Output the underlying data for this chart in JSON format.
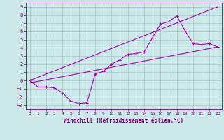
{
  "background_color": "#cce8e8",
  "grid_color": "#aacccc",
  "line_color": "#aa00aa",
  "marker_color": "#aa00aa",
  "xlabel": "Windchill (Refroidissement éolien,°C)",
  "xlabel_color": "#770077",
  "tick_color": "#770077",
  "xlim": [
    -0.5,
    23.5
  ],
  "ylim": [
    -3.5,
    9.5
  ],
  "xticks": [
    0,
    1,
    2,
    3,
    4,
    5,
    6,
    7,
    8,
    9,
    10,
    11,
    12,
    13,
    14,
    15,
    16,
    17,
    18,
    19,
    20,
    21,
    22,
    23
  ],
  "yticks": [
    -3,
    -2,
    -1,
    0,
    1,
    2,
    3,
    4,
    5,
    6,
    7,
    8,
    9
  ],
  "line1_x": [
    0,
    1,
    2,
    3,
    4,
    5,
    6,
    7,
    8,
    9,
    10,
    11,
    12,
    13,
    14,
    15,
    16,
    17,
    18,
    19,
    20,
    21,
    22,
    23
  ],
  "line1_y": [
    0.0,
    -0.8,
    -0.8,
    -0.9,
    -1.5,
    -2.5,
    -2.8,
    -2.7,
    0.8,
    1.1,
    2.0,
    2.5,
    3.2,
    3.3,
    3.5,
    5.2,
    6.9,
    7.2,
    7.9,
    6.1,
    4.5,
    4.4,
    4.5,
    4.1
  ],
  "line2_x": [
    0,
    23
  ],
  "line2_y": [
    -0.3,
    4.1
  ],
  "line3_x": [
    0,
    23
  ],
  "line3_y": [
    0.0,
    9.0
  ],
  "figsize": [
    3.2,
    2.0
  ],
  "dpi": 100
}
